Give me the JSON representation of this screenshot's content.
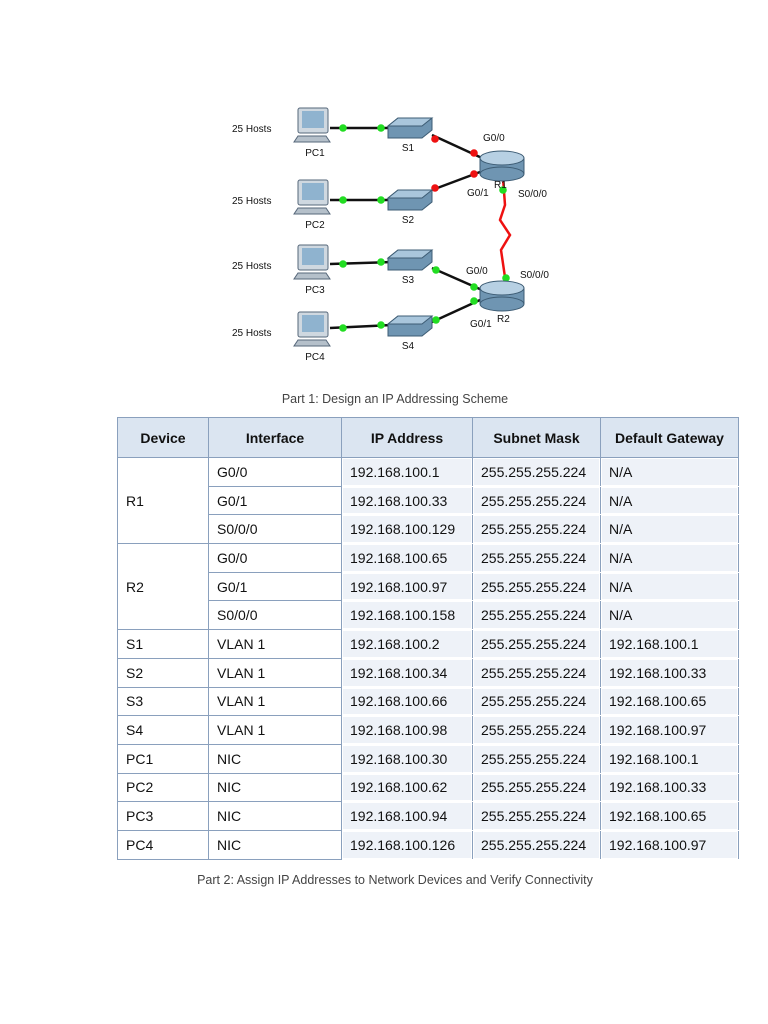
{
  "diagram": {
    "pcs": [
      {
        "name": "PC1",
        "hosts": "25 Hosts"
      },
      {
        "name": "PC2",
        "hosts": "25 Hosts"
      },
      {
        "name": "PC3",
        "hosts": "25 Hosts"
      },
      {
        "name": "PC4",
        "hosts": "25 Hosts"
      }
    ],
    "switches": [
      "S1",
      "S2",
      "S3",
      "S4"
    ],
    "routers": [
      {
        "name": "R1",
        "interfaces": [
          "G0/0",
          "G0/1",
          "S0/0/0"
        ]
      },
      {
        "name": "R2",
        "interfaces": [
          "G0/0",
          "S0/0/0",
          "G0/1"
        ]
      }
    ]
  },
  "captions": [
    "Part 1: Design an IP Addressing Scheme",
    "Part 2: Assign IP Addresses to Network Devices and Verify Connectivity"
  ],
  "table": {
    "header": [
      "Device",
      "Interface",
      "IP Address",
      "Subnet Mask",
      "Default Gateway"
    ],
    "groups": [
      {
        "device": "R1",
        "rows": [
          [
            "G0/0",
            "192.168.100.1",
            "255.255.255.224",
            "N/A"
          ],
          [
            "G0/1",
            "192.168.100.33",
            "255.255.255.224",
            "N/A"
          ],
          [
            "S0/0/0",
            "192.168.100.129",
            "255.255.255.224",
            "N/A"
          ]
        ]
      },
      {
        "device": "R2",
        "rows": [
          [
            "G0/0",
            "192.168.100.65",
            "255.255.255.224",
            "N/A"
          ],
          [
            "G0/1",
            "192.168.100.97",
            "255.255.255.224",
            "N/A"
          ],
          [
            "S0/0/0",
            "192.168.100.158",
            "255.255.255.224",
            "N/A"
          ]
        ]
      },
      {
        "device": "S1",
        "rows": [
          [
            "VLAN 1",
            "192.168.100.2",
            "255.255.255.224",
            "192.168.100.1"
          ]
        ]
      },
      {
        "device": "S2",
        "rows": [
          [
            "VLAN 1",
            "192.168.100.34",
            "255.255.255.224",
            "192.168.100.33"
          ]
        ]
      },
      {
        "device": "S3",
        "rows": [
          [
            "VLAN 1",
            "192.168.100.66",
            "255.255.255.224",
            "192.168.100.65"
          ]
        ]
      },
      {
        "device": "S4",
        "rows": [
          [
            "VLAN 1",
            "192.168.100.98",
            "255.255.255.224",
            "192.168.100.97"
          ]
        ]
      },
      {
        "device": "PC1",
        "rows": [
          [
            "NIC",
            "192.168.100.30",
            "255.255.255.224",
            "192.168.100.1"
          ]
        ]
      },
      {
        "device": "PC2",
        "rows": [
          [
            "NIC",
            "192.168.100.62",
            "255.255.255.224",
            "192.168.100.33"
          ]
        ]
      },
      {
        "device": "PC3",
        "rows": [
          [
            "NIC",
            "192.168.100.94",
            "255.255.255.224",
            "192.168.100.65"
          ]
        ]
      },
      {
        "device": "PC4",
        "rows": [
          [
            "NIC",
            "192.168.100.126",
            "255.255.255.224",
            "192.168.100.97"
          ]
        ]
      }
    ]
  }
}
